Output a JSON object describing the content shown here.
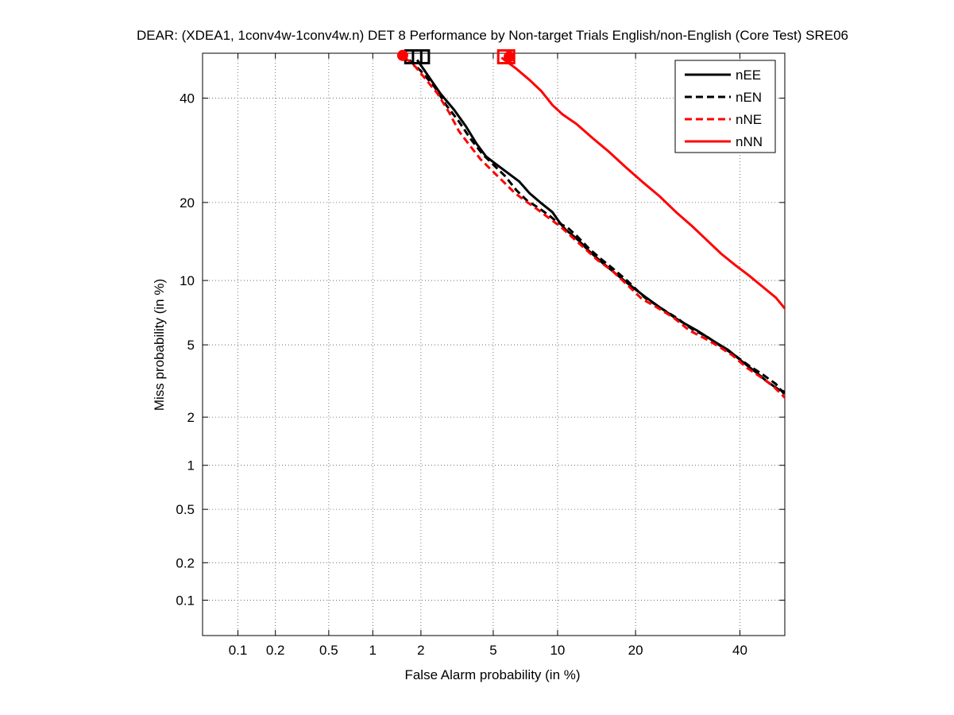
{
  "chart_data": {
    "type": "line",
    "title": "DEAR: (XDEA1, 1conv4w-1conv4w.n) DET 8 Performance by Non-target Trials English/non-English (Core Test) SRE06",
    "xlabel": "False Alarm probability (in %)",
    "ylabel": "Miss probability (in %)",
    "axis_scale": "probit",
    "xlim": [
      0.05,
      50
    ],
    "ylim": [
      0.05,
      50
    ],
    "grid": true,
    "legend_position": "top-right",
    "x_ticks": [
      0.1,
      0.2,
      0.5,
      1,
      2,
      5,
      10,
      20,
      40
    ],
    "x_tick_labels": [
      "0.1",
      "0.2",
      "0.5",
      "1",
      "2",
      "5",
      "10",
      "20",
      "40"
    ],
    "y_ticks": [
      0.1,
      0.2,
      0.5,
      1,
      2,
      5,
      10,
      20,
      40
    ],
    "y_tick_labels": [
      "0.1",
      "0.2",
      "0.5",
      "1",
      "2",
      "5",
      "10",
      "20",
      "40"
    ],
    "series": [
      {
        "name": "nEE",
        "color": "#000000",
        "dash": "solid",
        "x": [
          1.9,
          2.2,
          2.6,
          3.1,
          3.6,
          4.1,
          4.6,
          5.2,
          5.9,
          6.7,
          7.5,
          8.4,
          9.5,
          10.2,
          10.8,
          11.5,
          12.3,
          13.5,
          15.0,
          17.0,
          19.0,
          21.5,
          24.0,
          27.5,
          31.0,
          34.5,
          37.5,
          40.5,
          43.5,
          46.0,
          48.5,
          50.0
        ],
        "y": [
          48.5,
          45.0,
          41.0,
          37.5,
          34.0,
          30.5,
          28.0,
          26.5,
          25.0,
          23.5,
          21.5,
          20.0,
          18.5,
          17.0,
          16.0,
          15.3,
          14.5,
          13.2,
          12.0,
          10.7,
          9.6,
          8.5,
          7.6,
          6.6,
          5.9,
          5.2,
          4.7,
          4.1,
          3.6,
          3.2,
          2.9,
          2.8
        ]
      },
      {
        "name": "nEN",
        "color": "#000000",
        "dash": "dashed",
        "x": [
          1.7,
          2.0,
          2.4,
          2.8,
          3.3,
          3.8,
          4.4,
          5.0,
          5.7,
          6.5,
          7.3,
          8.2,
          9.2,
          10.0,
          11.0,
          12.0,
          13.5,
          15.0,
          17.0,
          19.0,
          21.5,
          24.0,
          27.0,
          30.0,
          33.0,
          36.0,
          39.0,
          42.0,
          45.0,
          48.0,
          50.0
        ],
        "y": [
          48.5,
          46.0,
          42.5,
          38.5,
          35.0,
          31.5,
          28.5,
          26.5,
          24.5,
          22.0,
          20.3,
          19.2,
          18.0,
          17.0,
          16.3,
          15.2,
          13.5,
          12.3,
          11.0,
          9.8,
          8.4,
          7.6,
          6.8,
          6.0,
          5.5,
          4.9,
          4.4,
          3.9,
          3.5,
          3.1,
          2.7
        ]
      },
      {
        "name": "nNE",
        "color": "#ff0000",
        "dash": "dashed",
        "x": [
          1.6,
          1.85,
          2.1,
          2.5,
          2.9,
          3.3,
          3.8,
          4.3,
          4.9,
          5.6,
          6.4,
          7.2,
          8.1,
          9.2,
          10.3,
          11.5,
          13.0,
          14.5,
          16.5,
          18.5,
          21.0,
          23.5,
          26.5,
          29.5,
          32.5,
          35.5,
          38.5,
          41.5,
          44.5,
          47.5,
          50.0
        ],
        "y": [
          49.0,
          47.0,
          44.5,
          41.0,
          37.0,
          33.0,
          30.0,
          27.5,
          25.5,
          23.5,
          21.5,
          20.2,
          19.0,
          17.6,
          16.4,
          15.0,
          13.5,
          12.2,
          11.0,
          9.7,
          8.3,
          7.6,
          6.8,
          5.9,
          5.4,
          4.9,
          4.4,
          3.8,
          3.4,
          3.0,
          2.6
        ]
      },
      {
        "name": "nNN",
        "color": "#ff0000",
        "dash": "solid",
        "x": [
          5.5,
          6.5,
          7.5,
          8.5,
          9.5,
          10.5,
          12.0,
          14.0,
          16.0,
          18.5,
          21.0,
          24.0,
          27.0,
          30.0,
          33.0,
          36.0,
          39.0,
          42.0,
          45.0,
          48.0,
          50.0
        ],
        "y": [
          49.0,
          46.5,
          44.0,
          41.5,
          38.5,
          36.5,
          34.5,
          31.5,
          29.0,
          26.0,
          23.5,
          21.0,
          18.5,
          16.5,
          14.6,
          12.9,
          11.6,
          10.5,
          9.4,
          8.4,
          7.5
        ]
      }
    ],
    "markers": [
      {
        "series": "nEE",
        "shape": "square",
        "x": 2.0,
        "y": 49.2
      },
      {
        "series": "nEN",
        "shape": "square",
        "x": 1.8,
        "y": 49.2
      },
      {
        "series": "nNE",
        "shape": "circle",
        "x": 1.55,
        "y": 49.5
      },
      {
        "series": "nNN",
        "shape": "square",
        "x": 5.8,
        "y": 49.2
      },
      {
        "series": "nNN",
        "shape": "circle",
        "x": 6.0,
        "y": 49.2
      }
    ]
  }
}
